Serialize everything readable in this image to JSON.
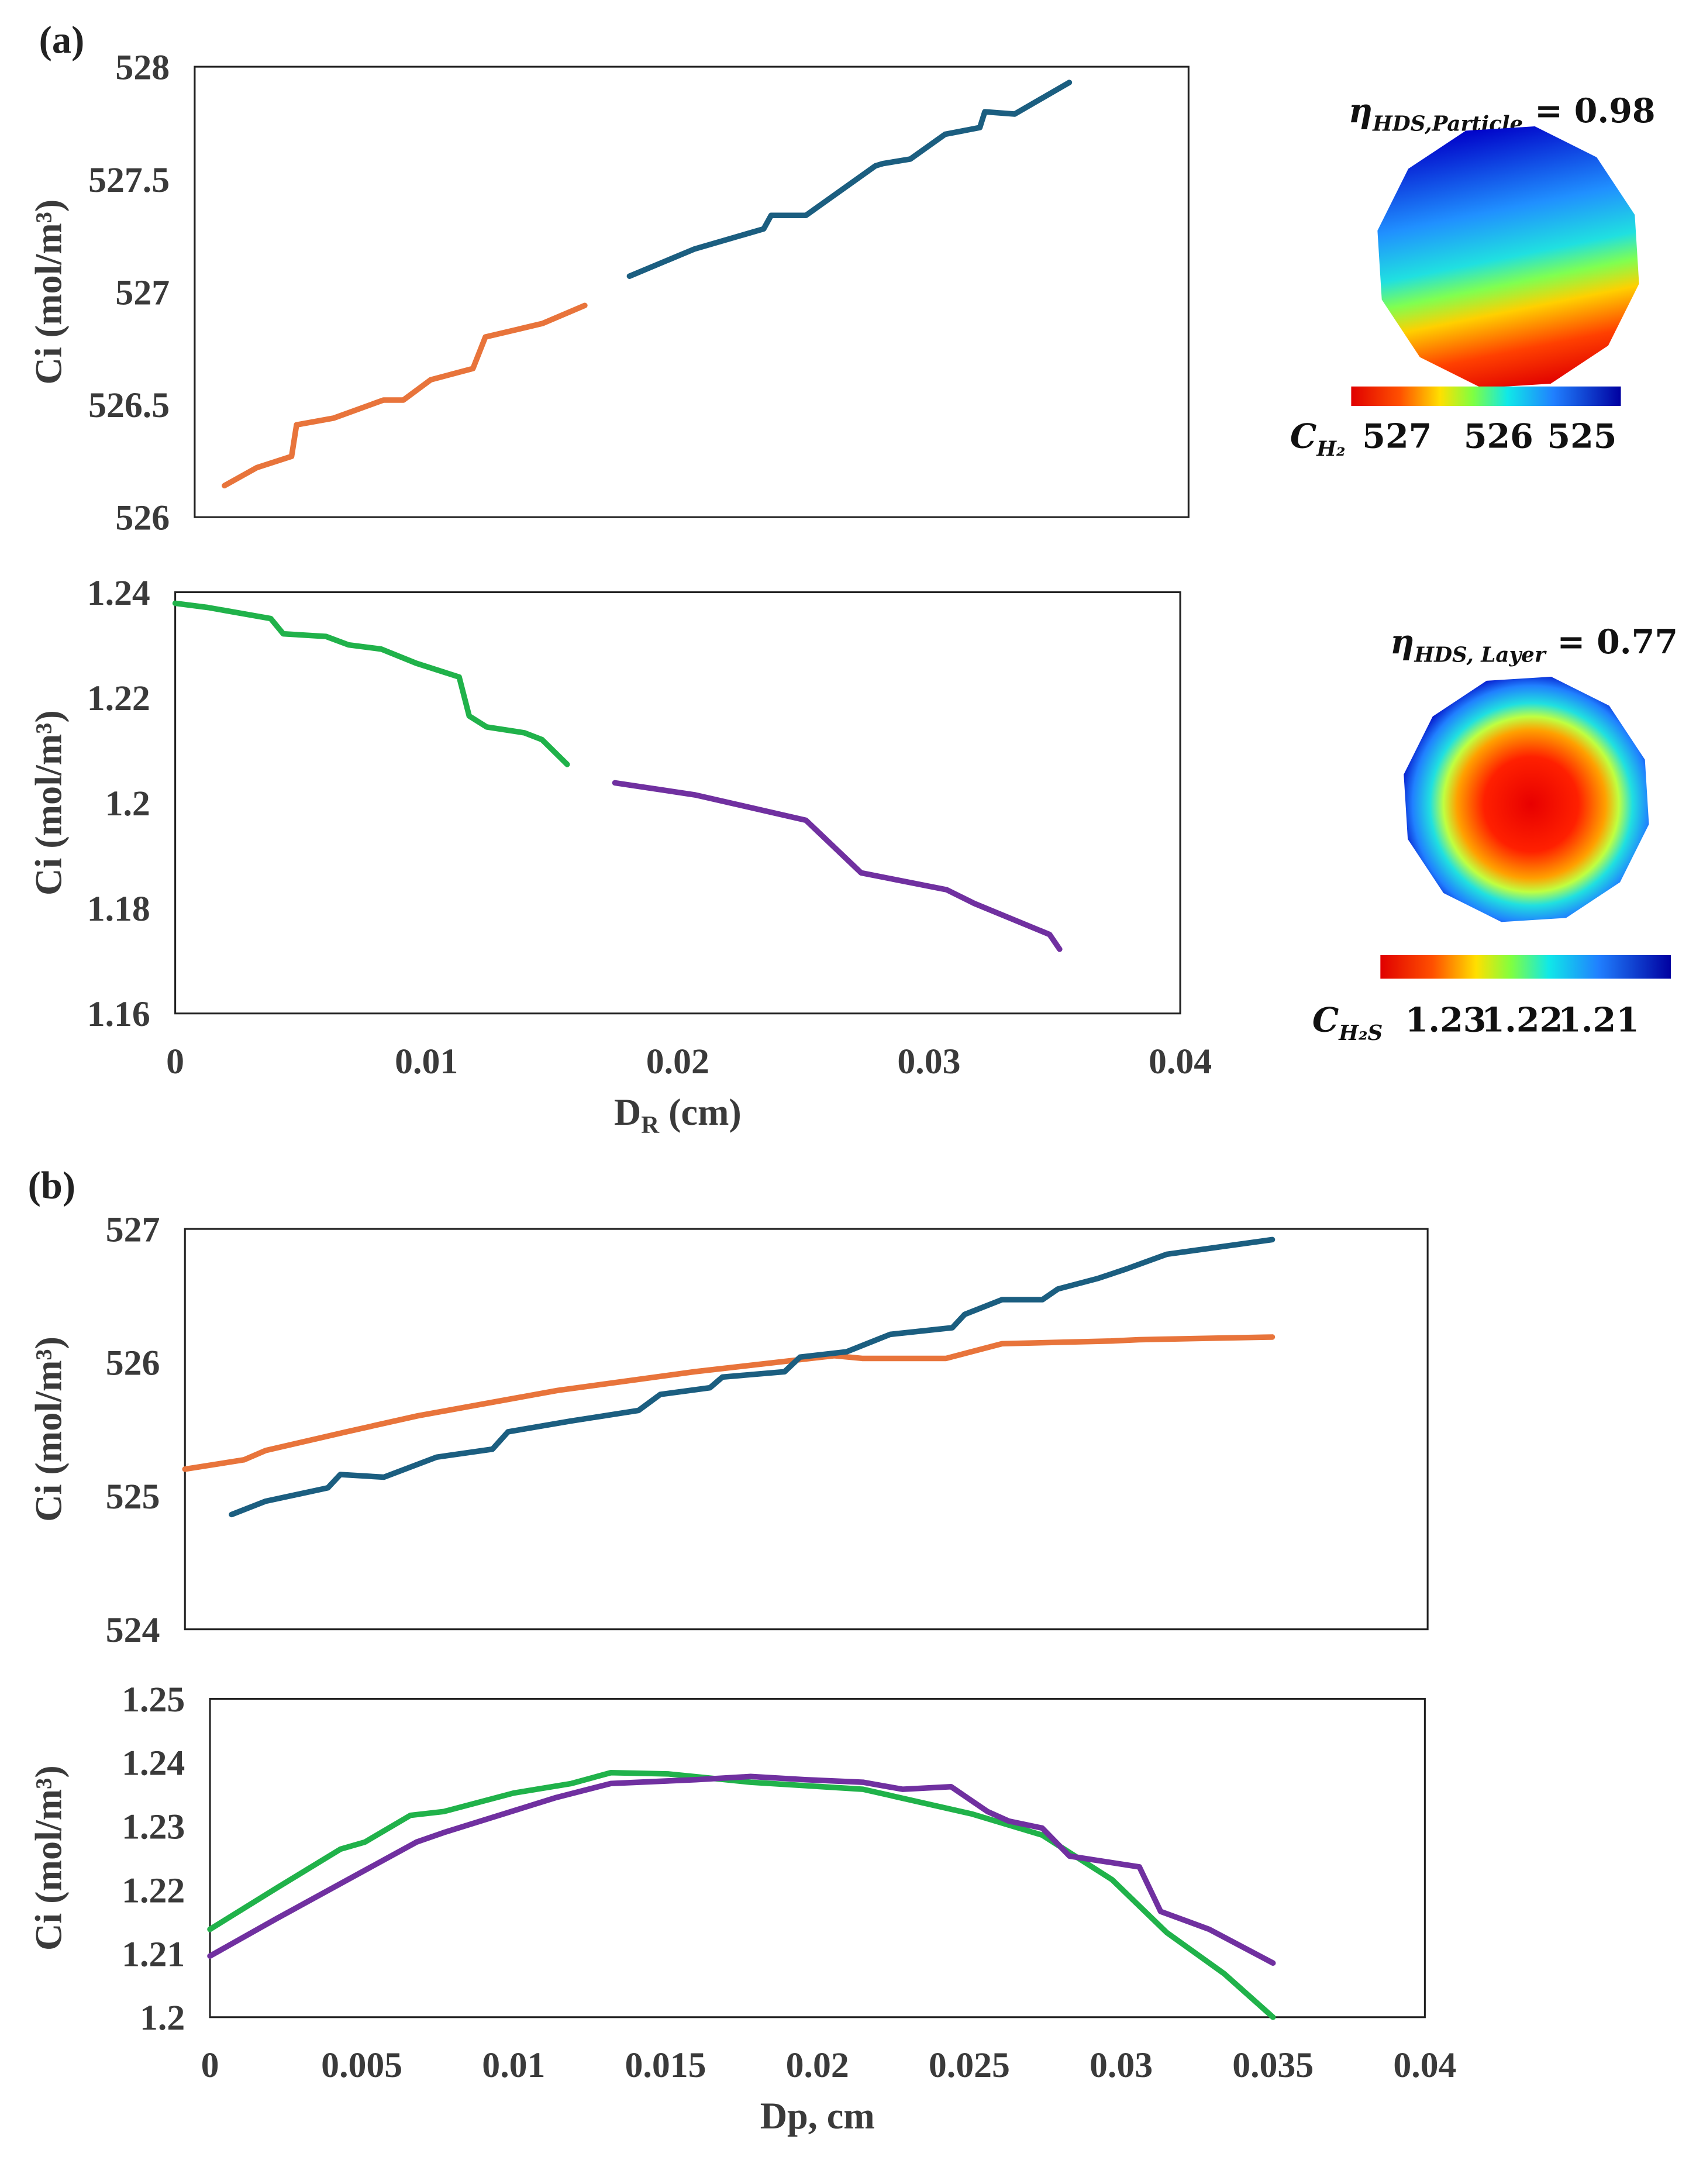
{
  "panel_labels": [
    "(a)",
    "(b)"
  ],
  "chart_data": [
    {
      "type": "line",
      "ylabel": "Ci (mol/m³)",
      "ylim": [
        526,
        528
      ],
      "yticks": [
        526,
        526.5,
        527,
        527.5,
        528
      ],
      "xlim": [
        0,
        0.04
      ],
      "series": [
        {
          "color": "#e8743b",
          "x": [
            0.0012,
            0.0025,
            0.0039,
            0.0041,
            0.0056,
            0.0076,
            0.0084,
            0.0095,
            0.0112,
            0.0117,
            0.014,
            0.0157
          ],
          "values": [
            526.14,
            526.22,
            526.27,
            526.41,
            526.44,
            526.52,
            526.52,
            526.61,
            526.66,
            526.8,
            526.86,
            526.94
          ]
        },
        {
          "color": "#1b5e80",
          "x": [
            0.0175,
            0.0201,
            0.0229,
            0.0232,
            0.0246,
            0.0274,
            0.0277,
            0.0288,
            0.0302,
            0.0316,
            0.0318,
            0.033,
            0.0352
          ],
          "values": [
            527.07,
            527.19,
            527.28,
            527.34,
            527.34,
            527.56,
            527.57,
            527.59,
            527.7,
            527.73,
            527.8,
            527.79,
            527.93
          ]
        }
      ]
    },
    {
      "type": "line",
      "ylabel": "Ci (mol/m³)",
      "xlabel": [
        "D",
        "R",
        " (cm)"
      ],
      "ylim": [
        1.16,
        1.24
      ],
      "yticks": [
        1.16,
        1.18,
        1.2,
        1.22,
        1.24
      ],
      "xlim": [
        0,
        0.04
      ],
      "xticks": [
        0,
        0.01,
        0.02,
        0.03,
        0.04
      ],
      "series": [
        {
          "color": "#20b24a",
          "x": [
            0,
            0.0013,
            0.0038,
            0.0043,
            0.006,
            0.0069,
            0.0082,
            0.0096,
            0.0113,
            0.0117,
            0.0124,
            0.0139,
            0.0146,
            0.0156
          ],
          "values": [
            1.2379,
            1.2371,
            1.235,
            1.2321,
            1.2316,
            1.23,
            1.2292,
            1.2265,
            1.2239,
            1.2165,
            1.2144,
            1.2133,
            1.212,
            1.2073
          ]
        },
        {
          "color": "#7030a0",
          "x": [
            0.0175,
            0.0207,
            0.0251,
            0.0273,
            0.0307,
            0.0318,
            0.0348,
            0.0352
          ],
          "values": [
            1.2038,
            1.2015,
            1.1967,
            1.1867,
            1.1835,
            1.1809,
            1.175,
            1.1722
          ]
        }
      ]
    },
    {
      "type": "line",
      "ylabel": "Ci (mol/m³)",
      "ylim": [
        524,
        527
      ],
      "yticks": [
        524,
        525,
        526,
        527
      ],
      "xlim": [
        0,
        0.04
      ],
      "series": [
        {
          "color": "#e8743b",
          "x": [
            0,
            0.0019,
            0.0026,
            0.0052,
            0.0075,
            0.012,
            0.0164,
            0.0209,
            0.0218,
            0.0245,
            0.0263,
            0.0298,
            0.0307,
            0.035
          ],
          "values": [
            525.2,
            525.27,
            525.34,
            525.48,
            525.6,
            525.79,
            525.93,
            526.05,
            526.03,
            526.03,
            526.14,
            526.16,
            526.17,
            526.19
          ]
        },
        {
          "color": "#1b5e80",
          "x": [
            0.0015,
            0.0026,
            0.0046,
            0.005,
            0.0064,
            0.0081,
            0.0099,
            0.0104,
            0.0124,
            0.0146,
            0.0153,
            0.0169,
            0.0173,
            0.0193,
            0.0198,
            0.0213,
            0.0227,
            0.0247,
            0.0251,
            0.0263,
            0.0276,
            0.0281,
            0.0294,
            0.0303,
            0.0316,
            0.035
          ],
          "values": [
            524.86,
            524.96,
            525.06,
            525.16,
            525.14,
            525.29,
            525.35,
            525.48,
            525.56,
            525.64,
            525.76,
            525.81,
            525.89,
            525.93,
            526.04,
            526.08,
            526.21,
            526.26,
            526.36,
            526.47,
            526.47,
            526.55,
            526.63,
            526.7,
            526.81,
            526.92
          ]
        }
      ]
    },
    {
      "type": "line",
      "ylabel": "Ci (mol/m³)",
      "xlabel": [
        "Dp, cm"
      ],
      "ylim": [
        1.2,
        1.25
      ],
      "yticks": [
        1.2,
        1.21,
        1.22,
        1.23,
        1.24,
        1.25
      ],
      "xlim": [
        0,
        0.04
      ],
      "xticks": [
        0,
        0.005,
        0.01,
        0.015,
        0.02,
        0.025,
        0.03,
        0.035,
        0.04
      ],
      "series": [
        {
          "color": "#20b24a",
          "x": [
            0,
            0.0022,
            0.0043,
            0.0051,
            0.0066,
            0.0077,
            0.01,
            0.0119,
            0.0132,
            0.0151,
            0.0178,
            0.0215,
            0.0251,
            0.0274,
            0.0297,
            0.0315,
            0.0334,
            0.035
          ],
          "values": [
            1.2138,
            1.2203,
            1.2264,
            1.2275,
            1.2317,
            1.2323,
            1.2352,
            1.2367,
            1.2384,
            1.2382,
            1.2369,
            1.2358,
            1.2319,
            1.2286,
            1.2216,
            1.2133,
            1.2068,
            1.2
          ]
        },
        {
          "color": "#7030a0",
          "x": [
            0,
            0.0022,
            0.0068,
            0.0077,
            0.0114,
            0.0132,
            0.016,
            0.0178,
            0.0196,
            0.0215,
            0.0228,
            0.0244,
            0.0256,
            0.0263,
            0.0274,
            0.0283,
            0.0306,
            0.0313,
            0.0329,
            0.035
          ],
          "values": [
            1.2096,
            1.2155,
            1.2275,
            1.229,
            1.2345,
            1.2367,
            1.2373,
            1.2378,
            1.2373,
            1.2369,
            1.2358,
            1.2362,
            1.2323,
            1.2308,
            1.2297,
            1.2253,
            1.2236,
            1.2166,
            1.2138,
            1.2085
          ]
        }
      ]
    }
  ],
  "insets": [
    {
      "eta": [
        "η",
        "HDS,Particle",
        " = 0.98"
      ],
      "colorbar_label": [
        "C",
        "H₂"
      ],
      "colorbar_ticks": [
        527,
        526,
        525
      ]
    },
    {
      "eta": [
        "η",
        "HDS, Layer",
        " = 0.77"
      ],
      "colorbar_label": [
        "C",
        "H₂S"
      ],
      "colorbar_ticks": [
        1.23,
        1.22,
        1.21
      ]
    }
  ]
}
